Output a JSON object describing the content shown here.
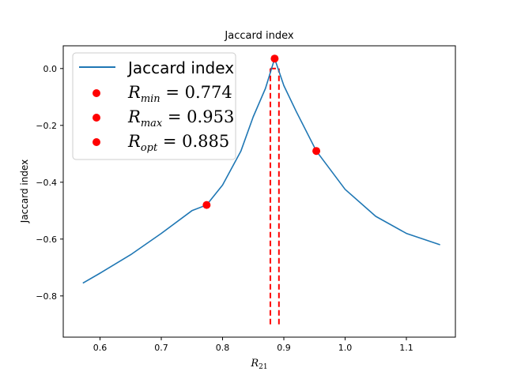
{
  "chart_data": {
    "type": "line",
    "title": "Jaccard index",
    "xlabel": "R_21",
    "ylabel": "Jaccard index",
    "xlim": [
      0.54,
      1.18
    ],
    "ylim": [
      -0.945,
      0.08
    ],
    "xticks": [
      0.6,
      0.7,
      0.8,
      0.9,
      1.0,
      1.1
    ],
    "xtick_labels": [
      "0.6",
      "0.7",
      "0.8",
      "0.9",
      "1.0",
      "1.1"
    ],
    "yticks": [
      0.0,
      -0.2,
      -0.4,
      -0.6,
      -0.8
    ],
    "ytick_labels": [
      "0.0",
      "−0.2",
      "−0.4",
      "−0.6",
      "−0.8"
    ],
    "grid": false,
    "legend_position": "top-left",
    "series": [
      {
        "name": "Jaccard index",
        "color": "#1f77b4",
        "x": [
          0.572,
          0.6,
          0.65,
          0.7,
          0.75,
          0.774,
          0.8,
          0.83,
          0.85,
          0.87,
          0.885,
          0.9,
          0.92,
          0.953,
          1.0,
          1.05,
          1.1,
          1.155
        ],
        "y": [
          -0.755,
          -0.72,
          -0.655,
          -0.58,
          -0.5,
          -0.48,
          -0.41,
          -0.29,
          -0.17,
          -0.07,
          0.035,
          -0.06,
          -0.15,
          -0.29,
          -0.425,
          -0.52,
          -0.58,
          -0.62
        ]
      }
    ],
    "points": [
      {
        "label": "R_min = 0.774",
        "x": 0.774,
        "y": -0.48,
        "color": "#ff0000"
      },
      {
        "label": "R_max = 0.953",
        "x": 0.953,
        "y": -0.29,
        "color": "#ff0000"
      },
      {
        "label": "R_opt = 0.885",
        "x": 0.885,
        "y": 0.035,
        "color": "#ff0000"
      }
    ],
    "vlines": [
      {
        "x": 0.878,
        "y_from": -0.9,
        "y_to": 0.0,
        "color": "#ff0000",
        "style": "dashed"
      },
      {
        "x": 0.892,
        "y_from": -0.9,
        "y_to": 0.0,
        "color": "#ff0000",
        "style": "dashed"
      }
    ],
    "hline": {
      "x_from": 0.878,
      "x_to": 0.892,
      "y": 0.0,
      "color": "#ff0000",
      "style": "dashed"
    },
    "legend": {
      "line_label": "Jaccard index",
      "point_labels": [
        {
          "base": "R",
          "sub": "min",
          "rest": " = 0.774"
        },
        {
          "base": "R",
          "sub": "max",
          "rest": " = 0.953"
        },
        {
          "base": "R",
          "sub": "opt",
          "rest": " = 0.885"
        }
      ]
    },
    "xlabel_parts": {
      "base": "R",
      "sub": "21"
    }
  }
}
